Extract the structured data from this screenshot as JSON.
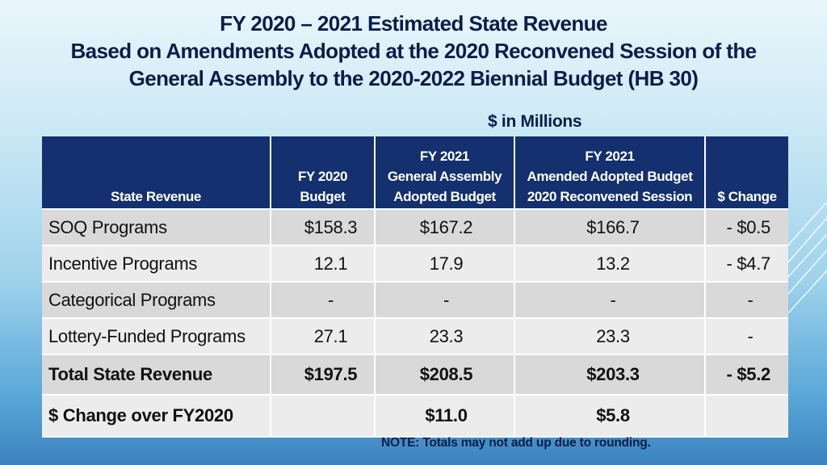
{
  "title": {
    "line1": "FY 2020 – 2021 Estimated State Revenue",
    "line2": "Based on Amendments Adopted at the 2020 Reconvened Session of the",
    "line3": "General Assembly to the 2020-2022 Biennial Budget (HB 30)"
  },
  "units": "$ in Millions",
  "table": {
    "headers": {
      "state_revenue": [
        "State Revenue"
      ],
      "fy2020": [
        "FY 2020",
        "Budget"
      ],
      "fy2021_ga": [
        "FY 2021",
        "General Assembly",
        "Adopted Budget"
      ],
      "fy2021_amended": [
        "FY 2021",
        "Amended Adopted Budget",
        "2020 Reconvened Session"
      ],
      "change": [
        "$ Change"
      ]
    },
    "rows": [
      {
        "label": "SOQ Programs",
        "fy2020": "$158.3",
        "fy2021_ga": "$167.2",
        "fy2021_amended": "$166.7",
        "change": "- $0.5"
      },
      {
        "label": "Incentive Programs",
        "fy2020": "12.1",
        "fy2021_ga": "17.9",
        "fy2021_amended": "13.2",
        "change": "- $4.7"
      },
      {
        "label": "Categorical Programs",
        "fy2020": "-",
        "fy2021_ga": "-",
        "fy2021_amended": "-",
        "change": "-"
      },
      {
        "label": "Lottery-Funded Programs",
        "fy2020": "27.1",
        "fy2021_ga": "23.3",
        "fy2021_amended": "23.3",
        "change": "-"
      }
    ],
    "total": {
      "label": "Total State Revenue",
      "fy2020": "$197.5",
      "fy2021_ga": "$208.5",
      "fy2021_amended": "$203.3",
      "change": "- $5.2"
    },
    "change_over": {
      "label": "$ Change over FY2020",
      "fy2020": "",
      "fy2021_ga": "$11.0",
      "fy2021_amended": "$5.8",
      "change": ""
    }
  },
  "note": "NOTE:  Totals may not add up due to rounding.",
  "colors": {
    "header_bg": "#14306e",
    "title": "#0b1d4a",
    "row_dark": "#d9d9d9",
    "row_light": "#ececec"
  }
}
